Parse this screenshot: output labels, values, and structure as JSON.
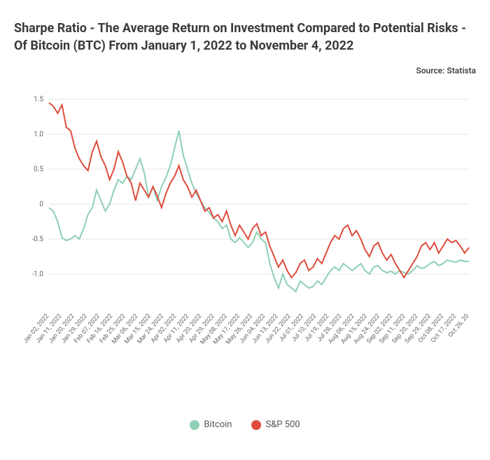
{
  "title": "Sharpe Ratio - The Average Return on Investment Compared to Potential Risks - Of Bitcoin (BTC) From January 1, 2022 to November 4, 2022",
  "source": "Source: Statista",
  "chart": {
    "type": "line",
    "background_color": "#ffffff",
    "grid_color": "#e5e5e5",
    "text_color": "#666666",
    "ylim": [
      -1.5,
      1.5
    ],
    "yticks": [
      -1.0,
      -0.5,
      0,
      0.5,
      1.0,
      1.5
    ],
    "xlabels": [
      "Jan 02, 2022",
      "Jan 11, 2022",
      "Jan 20, 2022",
      "Jan 29, 2022",
      "Feb 07, 2022",
      "Feb 16, 2022",
      "Feb 25, 2022",
      "Mar 06, 2022",
      "Mar 15, 2022",
      "Mar 24, 2022",
      "Apr 02, 2022",
      "Apr 11, 2022",
      "Apr 20, 2022",
      "Apr 29, 2022",
      "May 08, 2022",
      "May 17, 2022",
      "May 26, 2022",
      "Jun 04, 2022",
      "Jun 13, 2022",
      "Jun 22, 2022",
      "Jul 01, 2022",
      "Jul 10, 2022",
      "Jul 19, 2022",
      "Jul 28, 2022",
      "Aug 06, 2022",
      "Aug 15, 2022",
      "Aug 24, 2022",
      "Sep 02, 2022",
      "Sep 11, 2022",
      "Sep 20, 2022",
      "Sep 29, 2022",
      "Oct 08, 2022",
      "Oct 17, 2022",
      "Oct 26, 20"
    ],
    "series": [
      {
        "name": "Bitcoin",
        "color": "#8ecfb4",
        "data": [
          -0.05,
          -0.1,
          -0.25,
          -0.48,
          -0.52,
          -0.5,
          -0.45,
          -0.5,
          -0.35,
          -0.15,
          -0.05,
          0.2,
          0.05,
          -0.1,
          0.0,
          0.2,
          0.35,
          0.3,
          0.4,
          0.35,
          0.5,
          0.65,
          0.45,
          0.1,
          0.25,
          0.05,
          0.25,
          0.38,
          0.55,
          0.8,
          1.05,
          0.7,
          0.5,
          0.3,
          0.15,
          0.05,
          -0.05,
          -0.12,
          -0.2,
          -0.25,
          -0.35,
          -0.3,
          -0.5,
          -0.55,
          -0.48,
          -0.55,
          -0.62,
          -0.55,
          -0.4,
          -0.5,
          -0.55,
          -0.85,
          -1.05,
          -1.2,
          -1.0,
          -1.15,
          -1.2,
          -1.25,
          -1.1,
          -1.15,
          -1.2,
          -1.18,
          -1.1,
          -1.15,
          -1.05,
          -0.95,
          -0.9,
          -0.95,
          -0.85,
          -0.9,
          -0.95,
          -0.9,
          -0.85,
          -0.95,
          -1.0,
          -0.9,
          -0.88,
          -0.95,
          -0.98,
          -0.96,
          -1.0,
          -0.95,
          -0.98,
          -1.0,
          -0.95,
          -0.88,
          -0.92,
          -0.9,
          -0.85,
          -0.82,
          -0.88,
          -0.85,
          -0.8,
          -0.82,
          -0.83,
          -0.8,
          -0.82,
          -0.82
        ]
      },
      {
        "name": "S&P 500",
        "color": "#de4c3c",
        "data": [
          1.45,
          1.4,
          1.3,
          1.42,
          1.1,
          1.05,
          0.8,
          0.65,
          0.55,
          0.48,
          0.75,
          0.9,
          0.68,
          0.55,
          0.35,
          0.5,
          0.75,
          0.6,
          0.4,
          0.3,
          0.05,
          0.3,
          0.2,
          0.1,
          0.25,
          0.12,
          -0.05,
          0.15,
          0.3,
          0.4,
          0.55,
          0.35,
          0.25,
          0.1,
          0.2,
          0.05,
          -0.1,
          -0.05,
          -0.2,
          -0.15,
          -0.25,
          -0.1,
          -0.3,
          -0.45,
          -0.3,
          -0.4,
          -0.5,
          -0.35,
          -0.28,
          -0.45,
          -0.4,
          -0.6,
          -0.75,
          -0.9,
          -0.8,
          -0.95,
          -1.05,
          -0.98,
          -0.85,
          -0.8,
          -0.95,
          -0.9,
          -0.78,
          -0.85,
          -0.7,
          -0.55,
          -0.45,
          -0.5,
          -0.35,
          -0.3,
          -0.45,
          -0.38,
          -0.5,
          -0.65,
          -0.75,
          -0.6,
          -0.55,
          -0.7,
          -0.8,
          -0.72,
          -0.85,
          -0.95,
          -1.05,
          -0.95,
          -0.85,
          -0.75,
          -0.6,
          -0.55,
          -0.65,
          -0.55,
          -0.7,
          -0.6,
          -0.5,
          -0.55,
          -0.52,
          -0.6,
          -0.7,
          -0.62
        ]
      }
    ],
    "legend_position": "bottom",
    "line_width": 2,
    "title_fontsize": 18,
    "label_fontsize": 10
  },
  "legend": {
    "items": [
      {
        "label": "Bitcoin",
        "color": "#8ecfb4"
      },
      {
        "label": "S&P 500",
        "color": "#de4c3c"
      }
    ]
  }
}
